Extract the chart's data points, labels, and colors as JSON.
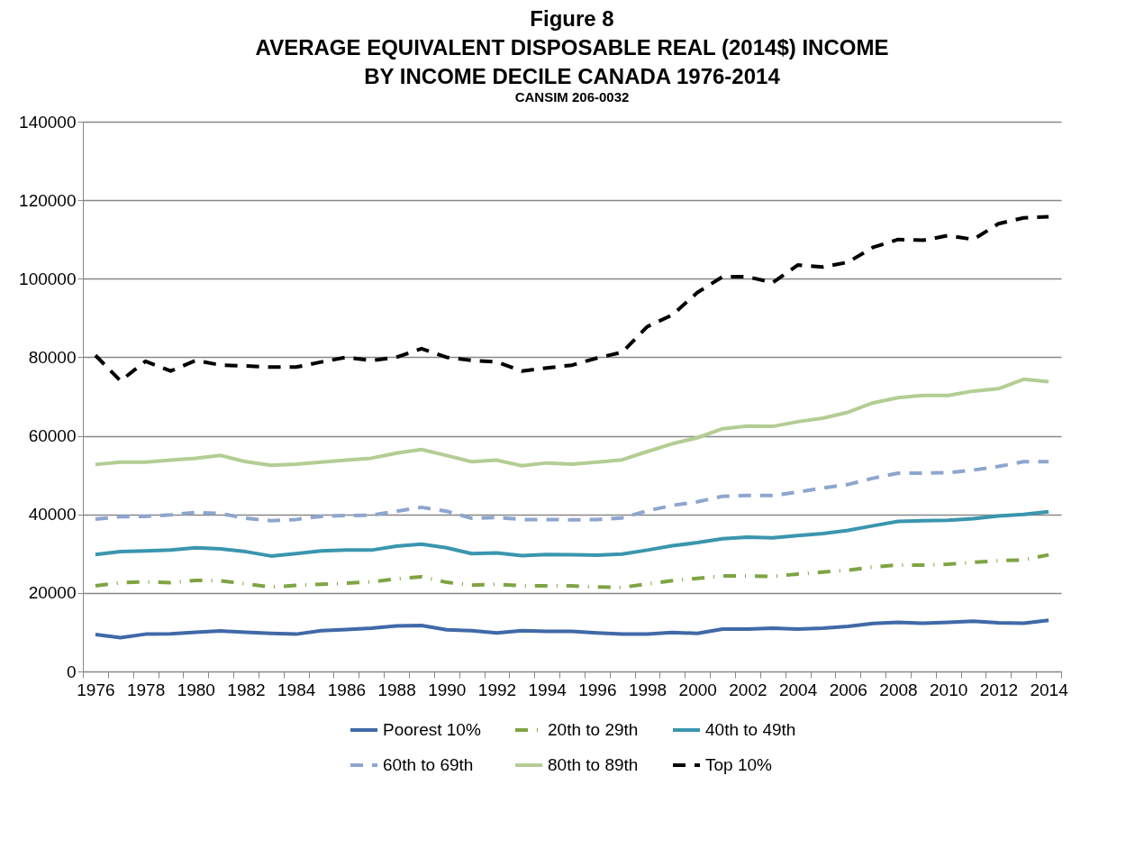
{
  "chart_data": {
    "type": "line",
    "title": "Figure 8\nAVERAGE EQUIVALENT DISPOSABLE REAL (2014$) INCOME\nBY INCOME DECILE CANADA 1976-2014",
    "subtitle": "CANSIM  206-0032",
    "categories": [
      "1976",
      null,
      "1978",
      null,
      "1980",
      null,
      "1982",
      null,
      "1984",
      null,
      "1986",
      null,
      "1988",
      null,
      "1990",
      null,
      "1992",
      null,
      "1994",
      null,
      "1996",
      null,
      "1998",
      null,
      "2000",
      null,
      "2002",
      null,
      "2004",
      null,
      "2006",
      null,
      "2008",
      null,
      "2010",
      null,
      "2012",
      null,
      "2014"
    ],
    "ylim": [
      0,
      140000
    ],
    "yticks": [
      0,
      20000,
      40000,
      60000,
      80000,
      100000,
      120000,
      140000
    ],
    "grid": "y",
    "legend": "bottom",
    "marker": "none",
    "series": [
      {
        "name": "Poorest 10%",
        "color": "#4069a8",
        "line_style": "solid",
        "values": [
          9400,
          8600,
          9500,
          9600,
          10000,
          10300,
          10000,
          9700,
          9500,
          10400,
          10700,
          11000,
          11600,
          11700,
          10600,
          10400,
          9800,
          10400,
          10200,
          10200,
          9800,
          9500,
          9500,
          9900,
          9700,
          10800,
          10800,
          11000,
          10800,
          11000,
          11500,
          12200,
          12500,
          12300,
          12500,
          12800,
          12400,
          12300,
          13000
        ]
      },
      {
        "name": "20th to 29th",
        "color": "#7ea443",
        "line_style": "dashdot",
        "values": [
          21800,
          22600,
          22800,
          22600,
          23200,
          23100,
          22300,
          21500,
          21900,
          22200,
          22500,
          22800,
          23600,
          24100,
          22700,
          22000,
          22200,
          21800,
          21800,
          21800,
          21500,
          21400,
          22300,
          23100,
          23700,
          24300,
          24300,
          24200,
          24800,
          25300,
          25800,
          26600,
          27100,
          27100,
          27300,
          27800,
          28200,
          28400,
          29700
        ]
      },
      {
        "name": "40th to 49th",
        "color": "#3a96ae",
        "line_style": "solid",
        "values": [
          29800,
          30500,
          30700,
          30900,
          31500,
          31200,
          30500,
          29400,
          30000,
          30700,
          30900,
          30900,
          31900,
          32400,
          31500,
          30000,
          30200,
          29500,
          29800,
          29700,
          29600,
          29900,
          30900,
          32000,
          32800,
          33800,
          34200,
          34000,
          34600,
          35100,
          35900,
          37100,
          38200,
          38400,
          38500,
          38900,
          39600,
          40000,
          40700
        ]
      },
      {
        "name": "60th to 69th",
        "color": "#8ea6cf",
        "line_style": "dashed",
        "values": [
          38800,
          39400,
          39500,
          39900,
          40500,
          40200,
          39000,
          38400,
          38700,
          39500,
          39700,
          39800,
          40800,
          41800,
          40800,
          39000,
          39200,
          38700,
          38700,
          38600,
          38700,
          39100,
          40900,
          42300,
          43200,
          44600,
          44800,
          44800,
          45700,
          46700,
          47600,
          49200,
          50500,
          50500,
          50600,
          51300,
          52200,
          53400,
          53400
        ]
      },
      {
        "name": "80th to 89th",
        "color": "#b3cd93",
        "line_style": "solid",
        "values": [
          52700,
          53300,
          53300,
          53800,
          54300,
          55000,
          53400,
          52500,
          52800,
          53300,
          53800,
          54300,
          55600,
          56500,
          55000,
          53400,
          53800,
          52400,
          53100,
          52800,
          53300,
          53900,
          56000,
          58000,
          59500,
          61800,
          62500,
          62400,
          63600,
          64500,
          66000,
          68400,
          69700,
          70300,
          70300,
          71400,
          72000,
          74400,
          73800
        ]
      },
      {
        "name": "Top 10%",
        "color": "#000000",
        "line_style": "dashed",
        "values": [
          80500,
          74000,
          79000,
          76500,
          79200,
          78000,
          77800,
          77500,
          77500,
          78800,
          80000,
          79200,
          80000,
          82200,
          80000,
          79200,
          78800,
          76500,
          77300,
          78000,
          79800,
          81300,
          87800,
          90800,
          96500,
          100500,
          100500,
          99000,
          103500,
          103000,
          104200,
          108000,
          110000,
          109800,
          111000,
          110000,
          114000,
          115500,
          115800
        ]
      }
    ]
  }
}
